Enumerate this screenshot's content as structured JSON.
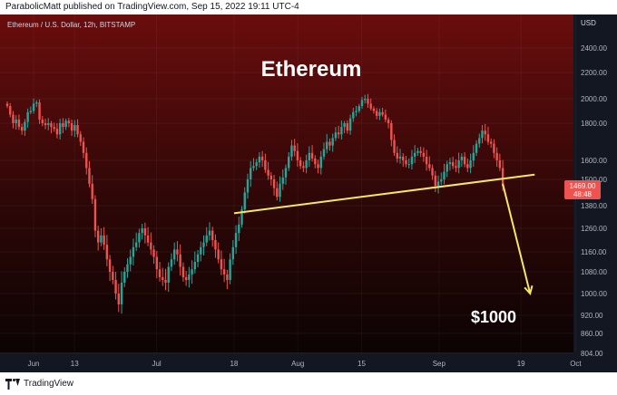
{
  "header": {
    "published": "ParabolicMatt published on TradingView.com, Sep 15, 2022 19:11 UTC-4"
  },
  "footer": {
    "brand": "TradingView"
  },
  "chart_data": {
    "type": "candlestick",
    "symbol_label": "Ethereum / U.S. Dollar, 12h, BITSTAMP",
    "title": "Ethereum",
    "annotation_target": "$1000",
    "currency": "USD",
    "y_ticks": [
      "2400.00",
      "2200.00",
      "2000.00",
      "1800.00",
      "1600.00",
      "1500.00",
      "1380.00",
      "1260.00",
      "1160.00",
      "1080.00",
      "1000.00",
      "920.00",
      "860.00",
      "804.00"
    ],
    "x_ticks": [
      "Jun",
      "13",
      "Jul",
      "18",
      "Aug",
      "15",
      "Sep",
      "19",
      "Oct"
    ],
    "last_price": "1469.00",
    "countdown": "48:48",
    "colors": {
      "up": "#26a69a",
      "down": "#ef5350",
      "trendline": "#f5e663",
      "arrow": "#f5e663",
      "price_tag": "#ef5350"
    },
    "trendline": {
      "from": {
        "date": "2022-07-18",
        "price": 1340
      },
      "to": {
        "date": "2022-09-22",
        "price": 1525
      }
    },
    "projection_arrow": {
      "from": {
        "date": "2022-09-15",
        "price": 1480
      },
      "to": {
        "date": "2022-09-21",
        "price": 1000
      }
    },
    "candles_note": "approximate 12h closes read off the chart",
    "closes": [
      1940,
      1870,
      1800,
      1830,
      1780,
      1760,
      1810,
      1890,
      1900,
      1960,
      1970,
      1830,
      1800,
      1790,
      1800,
      1780,
      1770,
      1740,
      1800,
      1780,
      1820,
      1800,
      1760,
      1790,
      1740,
      1700,
      1640,
      1560,
      1480,
      1410,
      1250,
      1200,
      1230,
      1190,
      1130,
      1080,
      1050,
      1000,
      960,
      1040,
      1080,
      1110,
      1140,
      1180,
      1200,
      1240,
      1260,
      1230,
      1200,
      1170,
      1140,
      1090,
      1060,
      1050,
      1040,
      1100,
      1130,
      1170,
      1150,
      1100,
      1060,
      1050,
      1070,
      1090,
      1120,
      1150,
      1180,
      1200,
      1230,
      1250,
      1210,
      1170,
      1130,
      1090,
      1070,
      1050,
      1130,
      1180,
      1240,
      1280,
      1360,
      1440,
      1500,
      1560,
      1570,
      1590,
      1620,
      1600,
      1550,
      1520,
      1500,
      1460,
      1420,
      1480,
      1510,
      1560,
      1620,
      1680,
      1650,
      1600,
      1570,
      1560,
      1600,
      1640,
      1610,
      1580,
      1560,
      1620,
      1660,
      1700,
      1680,
      1720,
      1750,
      1740,
      1780,
      1800,
      1760,
      1840,
      1890,
      1900,
      1940,
      1990,
      2000,
      1960,
      1920,
      1900,
      1860,
      1890,
      1870,
      1830,
      1800,
      1710,
      1640,
      1610,
      1620,
      1600,
      1580,
      1580,
      1620,
      1640,
      1650,
      1640,
      1620,
      1580,
      1560,
      1520,
      1470,
      1490,
      1500,
      1540,
      1580,
      1590,
      1570,
      1560,
      1600,
      1620,
      1580,
      1560,
      1600,
      1640,
      1690,
      1720,
      1760,
      1740,
      1700,
      1690,
      1640,
      1600,
      1560,
      1469
    ]
  }
}
